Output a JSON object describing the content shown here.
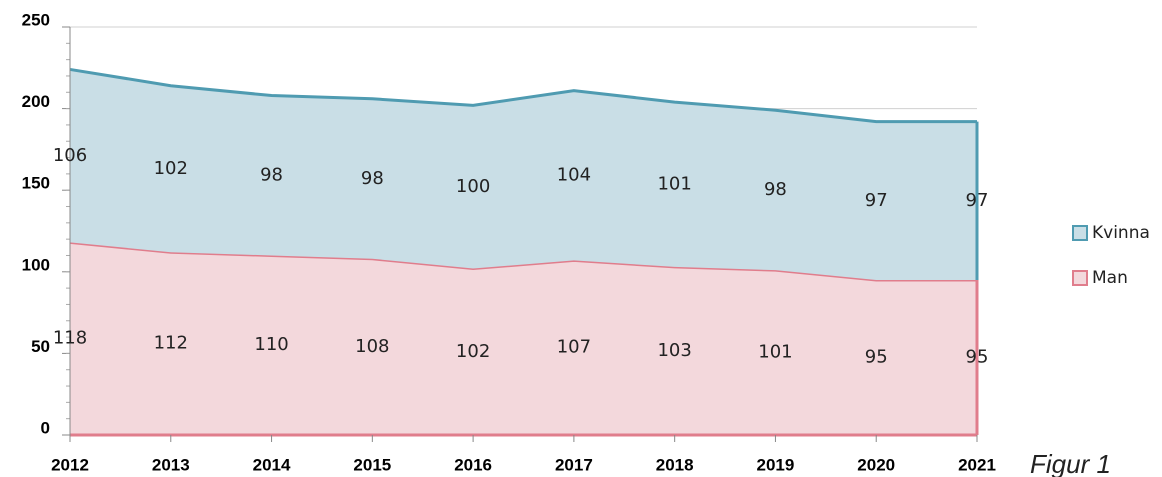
{
  "chart_data": {
    "type": "stacked-area",
    "categories": [
      "2012",
      "2013",
      "2014",
      "2015",
      "2016",
      "2017",
      "2018",
      "2019",
      "2020",
      "2021"
    ],
    "series": [
      {
        "name": "Man",
        "color": "#e07d8c",
        "fill": "#f3d8dc",
        "values": [
          118,
          112,
          110,
          108,
          102,
          107,
          103,
          101,
          95,
          95
        ]
      },
      {
        "name": "Kvinna",
        "color": "#4f9bb1",
        "fill": "#c9dee6",
        "values": [
          106,
          102,
          98,
          98,
          100,
          104,
          101,
          98,
          97,
          97
        ]
      }
    ],
    "ylim": [
      0,
      250
    ],
    "yticks": [
      0,
      50,
      100,
      150,
      200,
      250
    ],
    "grid": true,
    "annotation": "Figur 1"
  }
}
